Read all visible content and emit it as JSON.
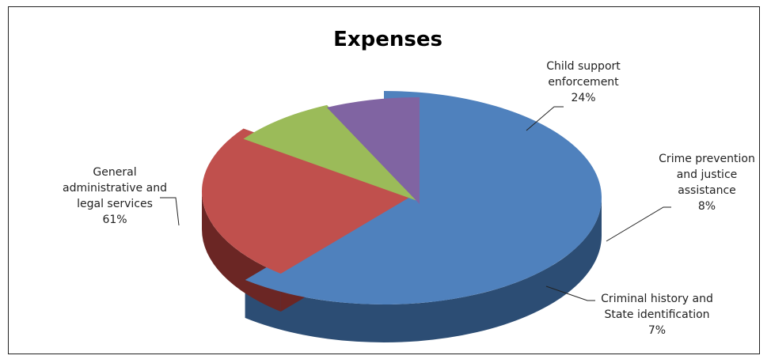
{
  "chart_data": {
    "type": "pie",
    "title": "Expenses",
    "slices": [
      {
        "name": "General administrative and legal services",
        "label_lines": [
          "General",
          "administrative and",
          "legal services"
        ],
        "value": 61,
        "pct_text": "61%",
        "color": "#4f81bd"
      },
      {
        "name": "Child support enforcement",
        "label_lines": [
          "Child support",
          "enforcement"
        ],
        "value": 24,
        "pct_text": "24%",
        "color": "#c0504d"
      },
      {
        "name": "Crime prevention and justice assistance",
        "label_lines": [
          "Crime prevention",
          "and justice",
          "assistance"
        ],
        "value": 8,
        "pct_text": "8%",
        "color": "#9bbb59"
      },
      {
        "name": "Criminal history and State identification",
        "label_lines": [
          "Criminal history and",
          "State identification"
        ],
        "value": 7,
        "pct_text": "7%",
        "color": "#8064a2"
      }
    ],
    "legend": "none",
    "style": "3d-exploded"
  }
}
